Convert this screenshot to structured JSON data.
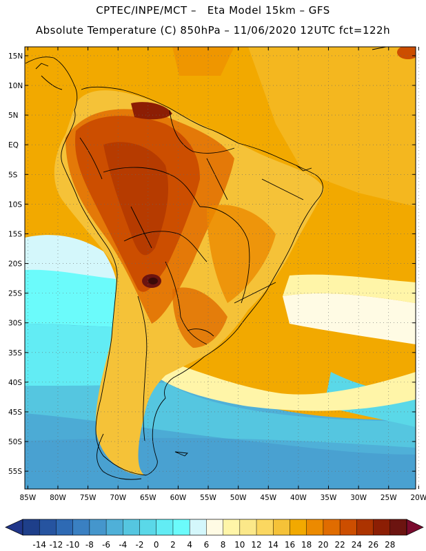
{
  "header": {
    "line1": "CPTEC/INPE/MCT –   Eta Model 15km – GFS",
    "line2": "Absolute Temperature (C) 850hPa – 11/06/2020 12UTC fct=122h"
  },
  "map": {
    "lat_labels": [
      "15N",
      "10N",
      "5N",
      "EQ",
      "5S",
      "10S",
      "15S",
      "20S",
      "25S",
      "30S",
      "35S",
      "40S",
      "45S",
      "50S",
      "55S"
    ],
    "lon_labels": [
      "85W",
      "80W",
      "75W",
      "70W",
      "65W",
      "60W",
      "55W",
      "50W",
      "45W",
      "40W",
      "35W",
      "30W",
      "25W",
      "20W"
    ],
    "lat_range": [
      -58,
      16.5
    ],
    "lon_range": [
      -85.5,
      -20.5
    ]
  },
  "legend": {
    "labels": [
      "-14",
      "-12",
      "-10",
      "-8",
      "-6",
      "-4",
      "-2",
      "0",
      "2",
      "4",
      "6",
      "8",
      "10",
      "12",
      "14",
      "16",
      "18",
      "20",
      "22",
      "24",
      "26",
      "28"
    ],
    "colors": [
      "#1e3f8a",
      "#2654a0",
      "#2e6ab4",
      "#3a80c2",
      "#4596cc",
      "#4fb0d8",
      "#55c6e0",
      "#5ad8e8",
      "#62ecf4",
      "#6bfbfb",
      "#d4f7fb",
      "#fffbe4",
      "#fff5a8",
      "#fbe889",
      "#fbd760",
      "#f5c238",
      "#f2a900",
      "#ec8a00",
      "#e06c00",
      "#cc4e00",
      "#ac3300",
      "#8c1e04",
      "#6c1410"
    ],
    "arrow_left_color": "#20368a",
    "arrow_right_color": "#7a0b2e"
  }
}
